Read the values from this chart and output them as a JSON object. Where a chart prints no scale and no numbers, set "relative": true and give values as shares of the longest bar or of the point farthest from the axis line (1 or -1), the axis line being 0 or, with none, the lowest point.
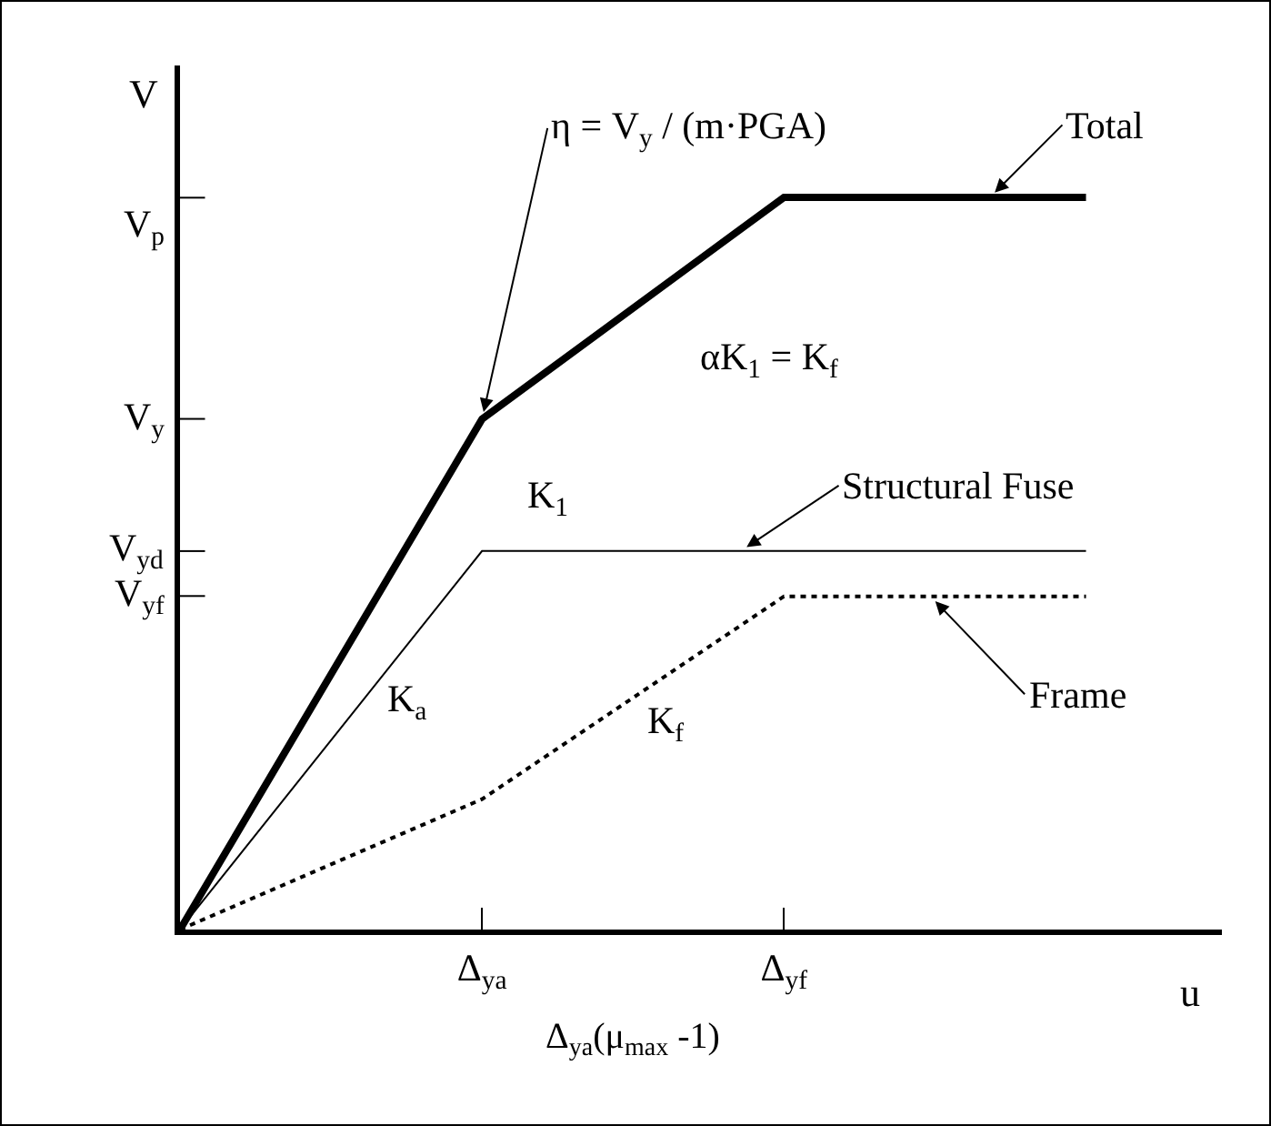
{
  "chart_data": {
    "type": "line",
    "relative": true,
    "xlabel": "u",
    "ylabel": "V",
    "categories": [
      null,
      "Δ$_{ya}$",
      "Δ$_{yf}$",
      null
    ],
    "grid": false,
    "marker": "none",
    "series": [
      {
        "color": "#000000",
        "line_style": "solid",
        "values": [
          0,
          0.697,
          1,
          1
        ]
      },
      {
        "color": "#000000",
        "line_style": "solid",
        "values": [
          0,
          0.517,
          0.517,
          0.517
        ]
      },
      {
        "color": "#000000",
        "line_style": "dotted",
        "values": [
          0,
          0.178,
          0.455,
          0.455
        ]
      }
    ],
    "annotations": [
      {
        "text": "η = V$_{y}$ / (m·PGA)",
        "x": "Δ$_{ya}$",
        "y": 0.697
      },
      "Total",
      "Structural Fuse",
      "Frame",
      "V$_{p}$",
      "V$_{y}$",
      "V$_{yd}$",
      "V$_{yf}$",
      "K$_{1}$",
      "αK$_{1}$ = K$_{f}$",
      "K$_{a}$",
      "K$_{f}$",
      "Δ$_{ya}$(μ$_{max}$ -1)"
    ]
  }
}
